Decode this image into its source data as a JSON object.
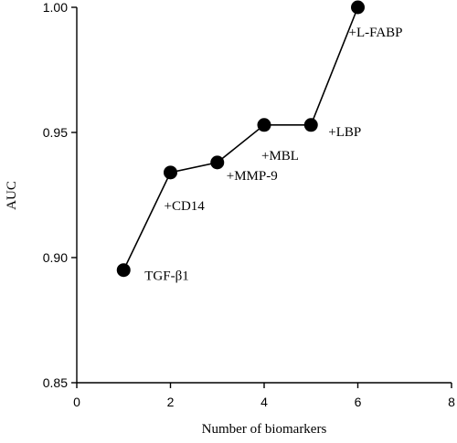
{
  "chart_data": {
    "type": "line",
    "xlabel": "Number of biomarkers",
    "ylabel": "AUC",
    "xlim": [
      0,
      8
    ],
    "ylim": [
      0.85,
      1.0
    ],
    "x_ticks": [
      0,
      2,
      4,
      6,
      8
    ],
    "y_ticks": [
      0.85,
      0.9,
      0.95,
      1.0
    ],
    "x_tick_labels": [
      "0",
      "2",
      "4",
      "6",
      "8"
    ],
    "y_tick_labels": [
      "0.85",
      "0.90",
      "0.95",
      "1.00"
    ],
    "grid": false,
    "series": [
      {
        "x": [
          1,
          2,
          3,
          4,
          5,
          6
        ],
        "values": [
          0.895,
          0.934,
          0.938,
          0.953,
          0.953,
          1.0
        ],
        "point_labels": [
          "TGF-β1",
          "+CD14",
          "+MMP-9",
          "+MBL",
          "+LBP",
          "+L-FABP"
        ],
        "color": "#000000"
      }
    ]
  }
}
